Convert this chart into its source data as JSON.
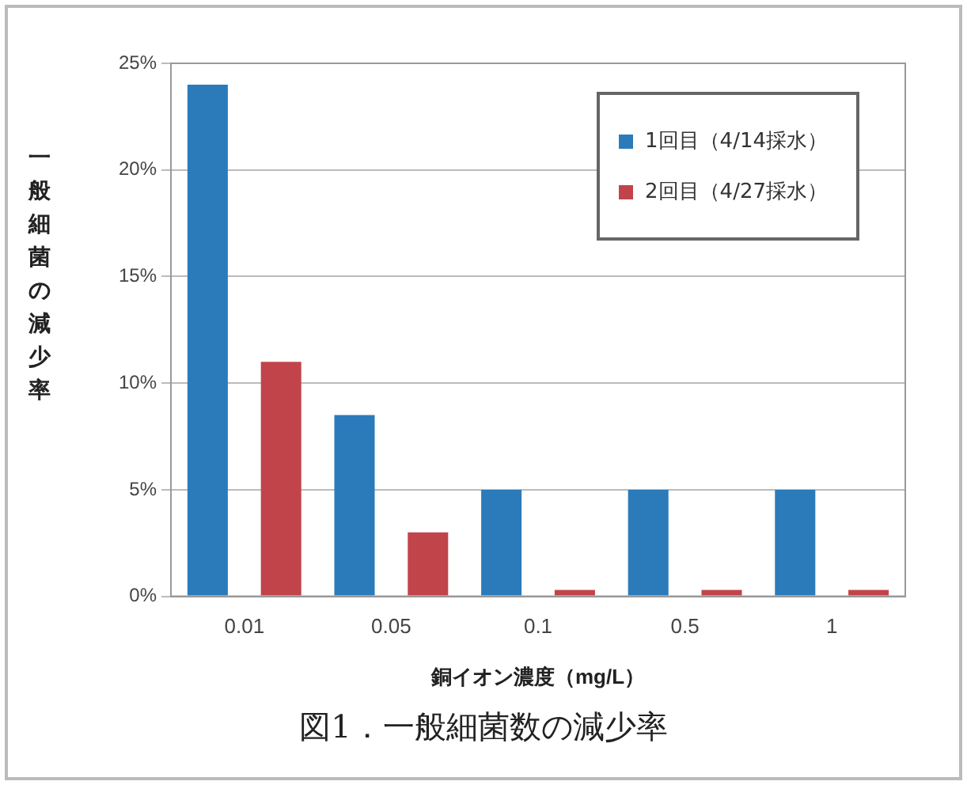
{
  "chart_data": {
    "type": "bar",
    "title": "図1．一般細菌数の減少率",
    "xlabel": "銅イオン濃度（mg/L）",
    "ylabel": "一般細菌の減少率",
    "categories": [
      "0.01",
      "0.05",
      "0.1",
      "0.5",
      "1"
    ],
    "series": [
      {
        "name": "1回目（4/14採水）",
        "color": "#2b7bba",
        "values": [
          24,
          8.5,
          5,
          5,
          5
        ]
      },
      {
        "name": "2回目（4/27採水）",
        "color": "#c1444b",
        "values": [
          11,
          3,
          0.3,
          0.3,
          0.3
        ]
      }
    ],
    "ylim": [
      0,
      25
    ],
    "yticks": [
      {
        "value": 0,
        "label": "0%"
      },
      {
        "value": 5,
        "label": "5%"
      },
      {
        "value": 10,
        "label": "10%"
      },
      {
        "value": 15,
        "label": "15%"
      },
      {
        "value": 20,
        "label": "20%"
      },
      {
        "value": 25,
        "label": "25%"
      }
    ],
    "grid": "y",
    "legend": "top right"
  }
}
